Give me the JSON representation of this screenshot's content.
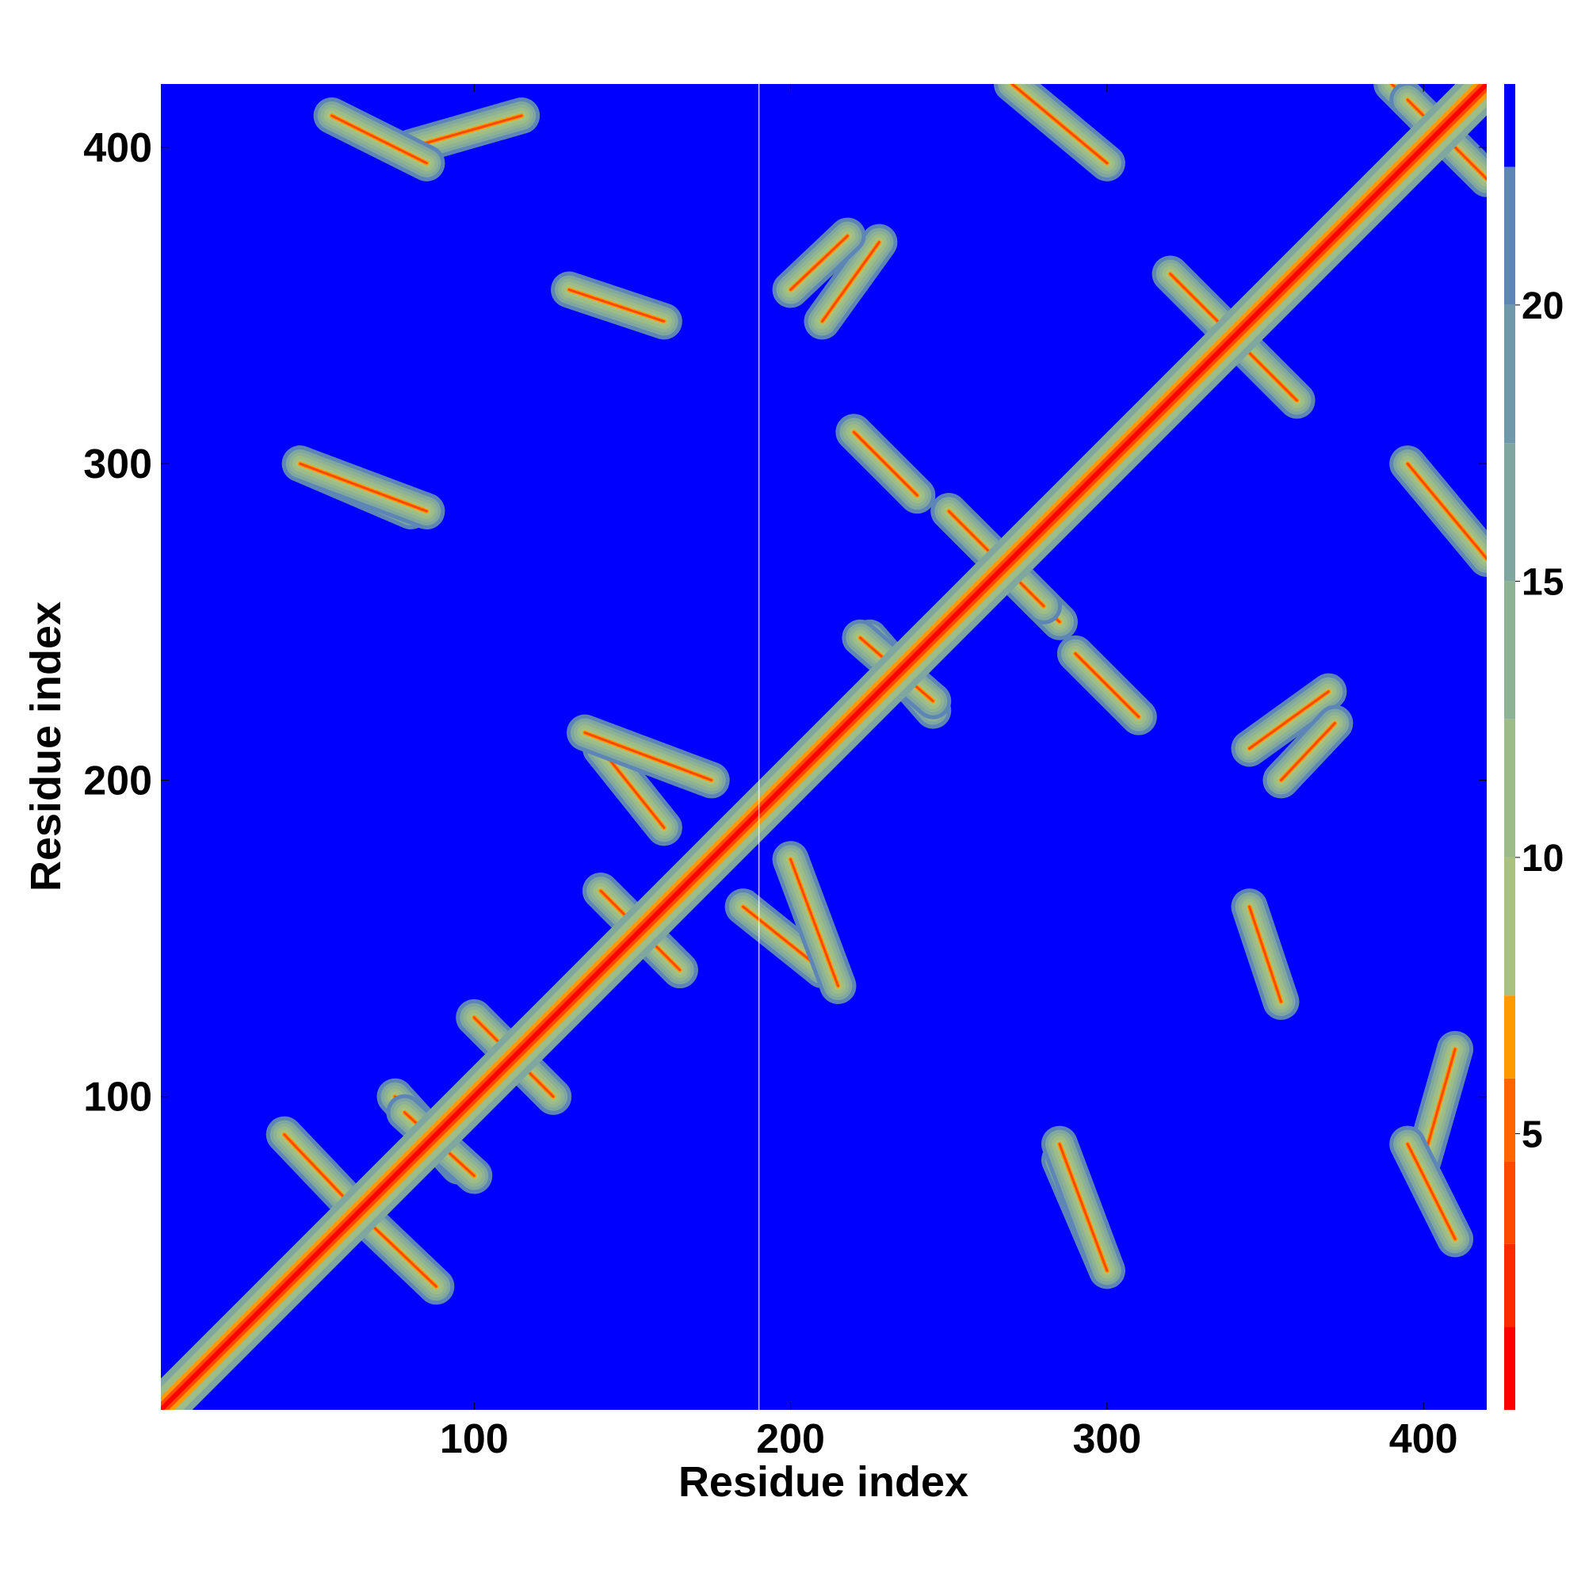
{
  "chart_data": {
    "type": "heatmap",
    "title": "",
    "xlabel": "Residue index",
    "ylabel": "Residue index",
    "xlim": [
      1,
      420
    ],
    "ylim": [
      1,
      420
    ],
    "x_ticks": [
      100,
      200,
      300,
      400
    ],
    "y_ticks": [
      100,
      200,
      300,
      400
    ],
    "x_tick_labels": [
      "100",
      "200",
      "300",
      "400"
    ],
    "y_tick_labels": [
      "100",
      "200",
      "300",
      "400"
    ],
    "grid": false,
    "n_residues": 420,
    "colorbar": {
      "position": "right",
      "range": [
        0,
        24
      ],
      "ticks": [
        5,
        10,
        15,
        20
      ],
      "tick_labels": [
        "5",
        "10",
        "15",
        "20"
      ],
      "levels": [
        {
          "from": 0,
          "to": 1.5,
          "color": "#ff0000"
        },
        {
          "from": 1.5,
          "to": 3,
          "color": "#ff2a00"
        },
        {
          "from": 3,
          "to": 4.5,
          "color": "#ff4800"
        },
        {
          "from": 4.5,
          "to": 6,
          "color": "#ff6600"
        },
        {
          "from": 6,
          "to": 7.5,
          "color": "#ff9a00"
        },
        {
          "from": 7.5,
          "to": 10,
          "color": "#a9c37f"
        },
        {
          "from": 10,
          "to": 12.5,
          "color": "#9cbd88"
        },
        {
          "from": 12.5,
          "to": 15,
          "color": "#8eb394"
        },
        {
          "from": 15,
          "to": 17.5,
          "color": "#7fa7a0"
        },
        {
          "from": 17.5,
          "to": 20,
          "color": "#6f98ab"
        },
        {
          "from": 20,
          "to": 22.5,
          "color": "#5d86b6"
        },
        {
          "from": 22.5,
          "to": 24,
          "color": "#0000ff"
        }
      ]
    },
    "description_of_features": {
      "diagonal_band": "self-contact band along x = y from 1 to 420",
      "contact_segments": [
        {
          "from": [
            40,
            88
          ],
          "to": [
            60,
            67
          ]
        },
        {
          "from": [
            75,
            100
          ],
          "to": [
            95,
            78
          ]
        },
        {
          "from": [
            100,
            125
          ],
          "to": [
            125,
            100
          ]
        },
        {
          "from": [
            140,
            210
          ],
          "to": [
            160,
            185
          ]
        },
        {
          "from": [
            140,
            165
          ],
          "to": [
            165,
            140
          ]
        },
        {
          "from": [
            200,
            175
          ],
          "to": [
            215,
            135
          ]
        },
        {
          "from": [
            225,
            245
          ],
          "to": [
            245,
            222
          ]
        },
        {
          "from": [
            255,
            280
          ],
          "to": [
            285,
            250
          ]
        },
        {
          "from": [
            290,
            240
          ],
          "to": [
            310,
            220
          ]
        },
        {
          "from": [
            320,
            360
          ],
          "to": [
            360,
            320
          ]
        },
        {
          "from": [
            210,
            345
          ],
          "to": [
            228,
            370
          ]
        },
        {
          "from": [
            355,
            200
          ],
          "to": [
            372,
            218
          ]
        },
        {
          "from": [
            390,
            420
          ],
          "to": [
            415,
            395
          ]
        },
        {
          "from": [
            45,
            300
          ],
          "to": [
            80,
            285
          ]
        },
        {
          "from": [
            130,
            355
          ],
          "to": [
            160,
            345
          ]
        },
        {
          "from": [
            80,
            400
          ],
          "to": [
            115,
            410
          ]
        },
        {
          "from": [
            270,
            420
          ],
          "to": [
            300,
            395
          ]
        },
        {
          "from": [
            285,
            85
          ],
          "to": [
            300,
            45
          ]
        },
        {
          "from": [
            395,
            85
          ],
          "to": [
            410,
            55
          ]
        }
      ]
    }
  }
}
